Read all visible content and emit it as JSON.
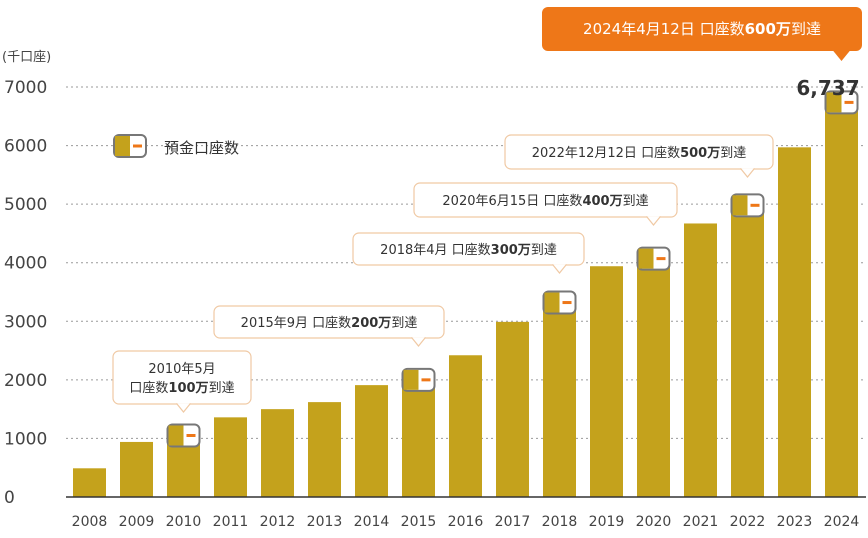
{
  "chart_data": {
    "type": "bar",
    "unit_label": "(千口座)",
    "categories": [
      "2008",
      "2009",
      "2010",
      "2011",
      "2012",
      "2013",
      "2014",
      "2015",
      "2016",
      "2017",
      "2018",
      "2019",
      "2020",
      "2021",
      "2022",
      "2023",
      "2024"
    ],
    "values": [
      490,
      940,
      1050,
      1360,
      1500,
      1620,
      1910,
      2000,
      2420,
      2990,
      3320,
      3940,
      4070,
      4670,
      4980,
      5970,
      6737
    ],
    "ylim": [
      0,
      7000
    ],
    "yticks": [
      0,
      1000,
      2000,
      3000,
      4000,
      5000,
      6000,
      7000
    ],
    "grid": true,
    "legend": {
      "label": "預金口座数",
      "placement": "top-left"
    },
    "bar_color": "#c4a21c",
    "marker_color": "#ee7718",
    "callout_border_color": "#f0c9a4",
    "highlight_color": "#ee7718",
    "total_label": "6,737",
    "milestones": [
      {
        "category": "2010",
        "lines": [
          [
            {
              "t": "2010年5月",
              "b": false
            }
          ],
          [
            {
              "t": "口座数",
              "b": false
            },
            {
              "t": "100万",
              "b": true
            },
            {
              "t": "到達",
              "b": false
            }
          ]
        ]
      },
      {
        "category": "2015",
        "lines": [
          [
            {
              "t": "2015年9月 口座数",
              "b": false
            },
            {
              "t": "200万",
              "b": true
            },
            {
              "t": "到達",
              "b": false
            }
          ]
        ]
      },
      {
        "category": "2018",
        "lines": [
          [
            {
              "t": "2018年4月 口座数",
              "b": false
            },
            {
              "t": "300万",
              "b": true
            },
            {
              "t": "到達",
              "b": false
            }
          ]
        ]
      },
      {
        "category": "2020",
        "lines": [
          [
            {
              "t": "2020年6月15日 口座数",
              "b": false
            },
            {
              "t": "400万",
              "b": true
            },
            {
              "t": "到達",
              "b": false
            }
          ]
        ]
      },
      {
        "category": "2022",
        "lines": [
          [
            {
              "t": "2022年12月12日 口座数",
              "b": false
            },
            {
              "t": "500万",
              "b": true
            },
            {
              "t": "到達",
              "b": false
            }
          ]
        ]
      },
      {
        "category": "2024",
        "highlight": true,
        "lines": [
          [
            {
              "t": "2024年4月12日 口座数",
              "b": false
            },
            {
              "t": "600万",
              "b": true
            },
            {
              "t": "到達",
              "b": false
            }
          ]
        ]
      }
    ]
  }
}
